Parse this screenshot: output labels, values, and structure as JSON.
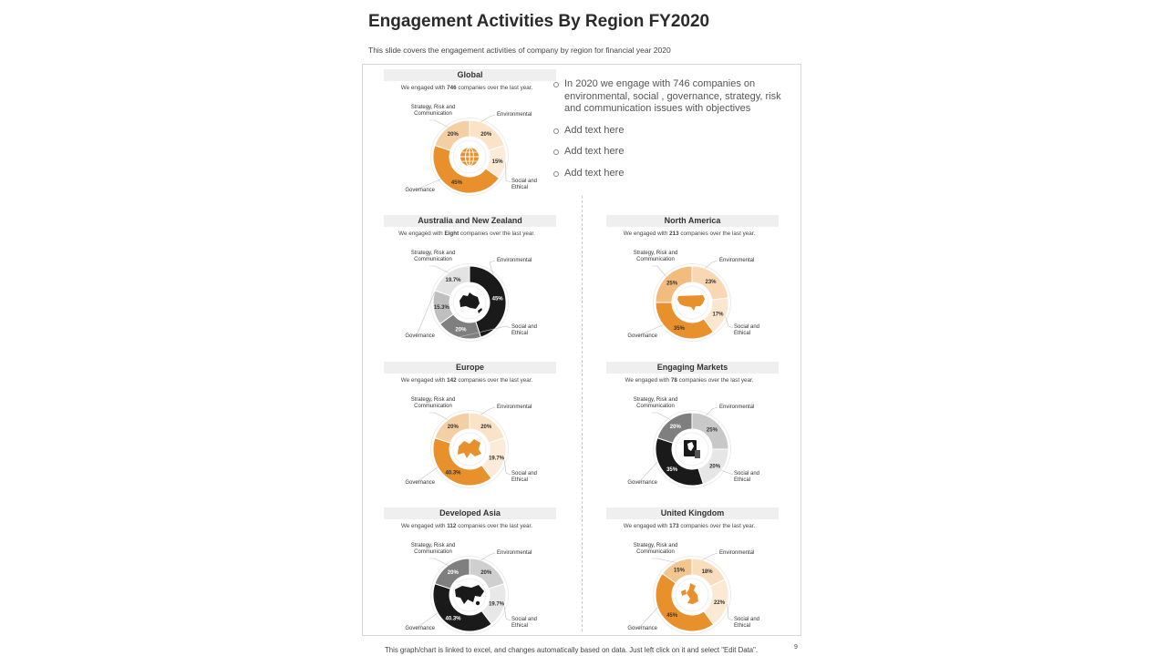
{
  "title": "Engagement Activities By Region FY2020",
  "subtitle": "This slide covers the engagement activities of company by region for financial year 2020",
  "bullets": [
    "In 2020 we engage with 746 companies on environmental, social , governance, strategy, risk and communication issues with objectives",
    "Add text here",
    "Add text here",
    "Add text here"
  ],
  "footer": "This graph/chart is linked to excel, and changes automatically based on data. Just left click on it and select \"Edit Data\".",
  "page_number": "9",
  "labels": {
    "env": "Environmental",
    "soc": "Social and Ethical",
    "gov": "Governance",
    "str": "Strategy, Risk and Communication"
  },
  "colors": {
    "orange_light": "#F5CFA4",
    "orange_pale": "#FAE0C4",
    "orange_mid": "#EFB774",
    "orange_dark": "#E8912C",
    "gray_light": "#D9D9D9",
    "gray_pale": "#EBEBEB",
    "gray_mid": "#7F7F7F",
    "black": "#1A1A1A"
  },
  "chart_data": [
    {
      "type": "pie",
      "id": "global",
      "region": "Global",
      "caption_pre": "We engaged with ",
      "count": "746",
      "caption_post": " companies over the last year.",
      "icon": "globe-icon",
      "categories": [
        "Environmental",
        "Social and Ethical",
        "Governance",
        "Strategy, Risk and Communication"
      ],
      "values": [
        20,
        15,
        45,
        20
      ],
      "value_labels": [
        "20%",
        "15%",
        "45%",
        "20%"
      ],
      "colors": [
        "#FBE3C8",
        "#FCEBD8",
        "#E8912C",
        "#F5CFA4"
      ]
    },
    {
      "type": "pie",
      "id": "anz",
      "region": "Australia and New Zealand",
      "caption_pre": "We engaged with ",
      "count": "Eight",
      "caption_post": " companies over the last year.",
      "icon": "australia-map-icon",
      "categories": [
        "Environmental",
        "Social and Ethical",
        "Governance",
        "Strategy, Risk and Communication"
      ],
      "values": [
        45,
        20,
        15.3,
        19.7
      ],
      "value_labels": [
        "45%",
        "20%",
        "15.3%",
        "19.7%"
      ],
      "colors": [
        "#1A1A1A",
        "#7F7F7F",
        "#BFBFBF",
        "#E3E3E3"
      ]
    },
    {
      "type": "pie",
      "id": "na",
      "region": "North America",
      "caption_pre": "We engaged with ",
      "count": "213",
      "caption_post": " companies over the last year.",
      "icon": "usa-map-icon",
      "categories": [
        "Environmental",
        "Social and Ethical",
        "Governance",
        "Strategy, Risk and Communication"
      ],
      "values": [
        23,
        17,
        35,
        25
      ],
      "value_labels": [
        "23%",
        "17%",
        "35%",
        "25%"
      ],
      "colors": [
        "#F8D7B2",
        "#FBE6CE",
        "#E8912C",
        "#F2BC7E"
      ]
    },
    {
      "type": "pie",
      "id": "europe",
      "region": "Europe",
      "caption_pre": "We engaged with ",
      "count": "142",
      "caption_post": " companies over the last year.",
      "icon": "europe-map-icon",
      "categories": [
        "Environmental",
        "Social and Ethical",
        "Governance",
        "Strategy, Risk and Communication"
      ],
      "values": [
        20,
        19.7,
        40.3,
        20
      ],
      "value_labels": [
        "20%",
        "19.7%",
        "40.3%",
        "20%"
      ],
      "colors": [
        "#FBE3C8",
        "#FCEBD8",
        "#E8912C",
        "#F5CFA4"
      ]
    },
    {
      "type": "pie",
      "id": "em",
      "region": "Engaging Markets",
      "caption_pre": "We engaged with ",
      "count": "78",
      "caption_post": " companies over the last year.",
      "icon": "market-map-icon",
      "categories": [
        "Environmental",
        "Social and Ethical",
        "Governance",
        "Strategy, Risk and Communication"
      ],
      "values": [
        25,
        20,
        35,
        20
      ],
      "value_labels": [
        "25%",
        "20%",
        "35%",
        "20%"
      ],
      "colors": [
        "#C8C8C8",
        "#E6E6E6",
        "#1A1A1A",
        "#7F7F7F"
      ]
    },
    {
      "type": "pie",
      "id": "asia",
      "region": "Developed Asia",
      "caption_pre": "We engaged with ",
      "count": "112",
      "caption_post": " companies over the last year.",
      "icon": "asia-map-icon",
      "categories": [
        "Environmental",
        "Social and Ethical",
        "Governance",
        "Strategy, Risk and Communication"
      ],
      "values": [
        20,
        19.7,
        40.3,
        20
      ],
      "value_labels": [
        "20%",
        "19.7%",
        "40.3%",
        "20%"
      ],
      "colors": [
        "#CFCFCF",
        "#E8E8E8",
        "#1A1A1A",
        "#7F7F7F"
      ]
    },
    {
      "type": "pie",
      "id": "uk",
      "region": "United Kingdom",
      "caption_pre": "We engaged with ",
      "count": "173",
      "caption_post": " companies over the last year.",
      "icon": "uk-map-icon",
      "categories": [
        "Environmental",
        "Social and Ethical",
        "Governance",
        "Strategy, Risk and Communication"
      ],
      "values": [
        18,
        22,
        45,
        15
      ],
      "value_labels": [
        "18%",
        "22%",
        "45%",
        "15%"
      ],
      "colors": [
        "#F9DDBD",
        "#FCE9D4",
        "#E8912C",
        "#F4C68F"
      ]
    }
  ]
}
